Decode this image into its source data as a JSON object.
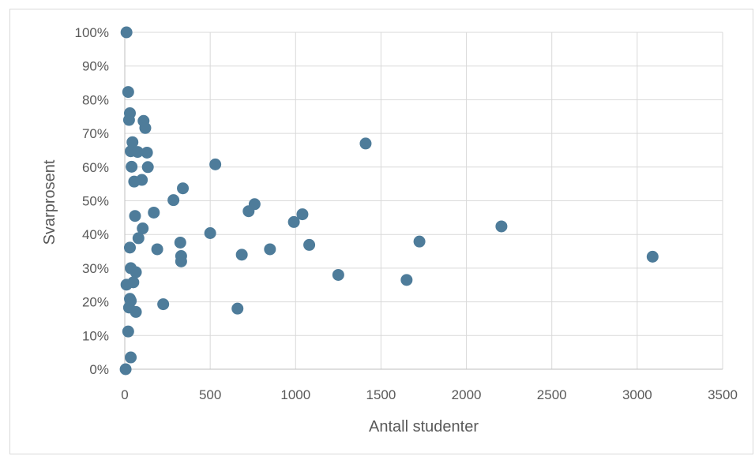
{
  "chart_data": {
    "type": "scatter",
    "title": "",
    "xlabel": "Antall studenter",
    "ylabel": "Svarprosent",
    "xlim": [
      0,
      3500
    ],
    "ylim": [
      0,
      1
    ],
    "x_ticks": [
      0,
      500,
      1000,
      1500,
      2000,
      2500,
      3000,
      3500
    ],
    "x_tick_labels": [
      "0",
      "500",
      "1000",
      "1500",
      "2000",
      "2500",
      "3000",
      "3500"
    ],
    "y_ticks": [
      0,
      0.1,
      0.2,
      0.3,
      0.4,
      0.5,
      0.6,
      0.7,
      0.8,
      0.9,
      1.0
    ],
    "y_tick_labels": [
      "0%",
      "10%",
      "20%",
      "30%",
      "40%",
      "50%",
      "60%",
      "70%",
      "80%",
      "90%",
      "100%"
    ],
    "grid": true,
    "legend": "none",
    "marker_color": "#4e7c9a",
    "series": [
      {
        "x": [
          10,
          20,
          30,
          25,
          110,
          120,
          45,
          1410,
          35,
          75,
          130,
          40,
          135,
          530,
          100,
          55,
          340,
          285,
          760,
          725,
          170,
          60,
          1040,
          990,
          105,
          500,
          80,
          1725,
          2205,
          325,
          1080,
          190,
          850,
          685,
          330,
          330,
          30,
          3090,
          35,
          65,
          1250,
          1650,
          10,
          50,
          30,
          35,
          225,
          660,
          25,
          65,
          20,
          35,
          5
        ],
        "y": [
          1.0,
          0.823,
          0.76,
          0.74,
          0.737,
          0.716,
          0.674,
          0.67,
          0.647,
          0.645,
          0.643,
          0.601,
          0.6,
          0.608,
          0.562,
          0.557,
          0.537,
          0.502,
          0.49,
          0.469,
          0.465,
          0.455,
          0.46,
          0.437,
          0.418,
          0.404,
          0.389,
          0.379,
          0.424,
          0.376,
          0.369,
          0.356,
          0.356,
          0.34,
          0.336,
          0.32,
          0.361,
          0.334,
          0.3,
          0.288,
          0.28,
          0.265,
          0.251,
          0.258,
          0.209,
          0.203,
          0.193,
          0.18,
          0.183,
          0.17,
          0.112,
          0.035,
          0.0
        ]
      }
    ]
  }
}
